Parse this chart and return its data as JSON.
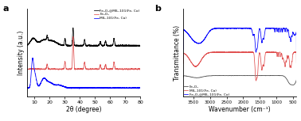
{
  "panel_a_label": "a",
  "panel_b_label": "b",
  "xrd_xlabel": "2θ (degree)",
  "xrd_ylabel": "Intensity (a.u.)",
  "ftir_xlabel": "Wavenumber (cm⁻¹)",
  "ftir_ylabel": "Transmittance (%)",
  "xrd_xlim": [
    5,
    80
  ],
  "xrd_xticks": [
    10,
    20,
    30,
    40,
    50,
    60,
    70,
    80
  ],
  "ftir_xlim": [
    3800,
    400
  ],
  "ftir_xticks": [
    3500,
    3000,
    2500,
    2000,
    1500,
    1000,
    500
  ],
  "legend_a": [
    "Fe₃O₄@MIL-101(Fe, Co)",
    "Fe₃O₄",
    "MIL-101(Fe, Co)"
  ],
  "legend_b": [
    "Fe₃O₄",
    "MIL-101(Fe, Co)",
    "Fe₃O₄@MIL-101(Fe, Co)"
  ],
  "colors_a": [
    "black",
    "#e05050",
    "blue"
  ],
  "colors_b": [
    "#404040",
    "#e05050",
    "blue"
  ],
  "bg_color": "#ffffff"
}
